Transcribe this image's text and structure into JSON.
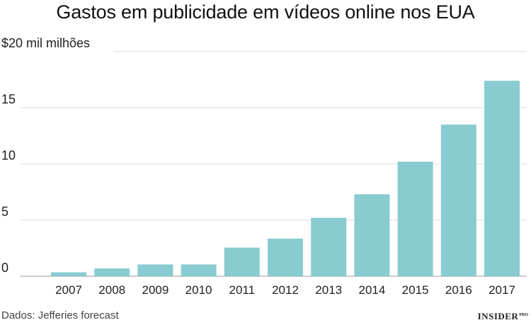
{
  "chart_data": {
    "type": "bar",
    "title": "Gastos em publicidade em vídeos online nos EUA",
    "ylabel": "",
    "xlabel": "",
    "categories": [
      "2007",
      "2008",
      "2009",
      "2010",
      "2011",
      "2012",
      "2013",
      "2014",
      "2015",
      "2016",
      "2017"
    ],
    "values": [
      0.35,
      0.7,
      1.05,
      1.05,
      2.55,
      3.35,
      5.2,
      7.3,
      10.2,
      13.5,
      17.4
    ],
    "ylim": [
      0,
      20
    ],
    "yticks": [
      {
        "value": 0,
        "label": "0"
      },
      {
        "value": 5,
        "label": "5"
      },
      {
        "value": 10,
        "label": "10"
      },
      {
        "value": 15,
        "label": "15"
      },
      {
        "value": 20,
        "label": "$20 mil milhões"
      }
    ],
    "grid": true,
    "bar_color": "#88cbd0",
    "grid_color": "#dcdcdc"
  },
  "footer": {
    "source": "Dados: Jefferies forecast",
    "logo_main": "INSIDER",
    "logo_suffix": "PRO"
  }
}
